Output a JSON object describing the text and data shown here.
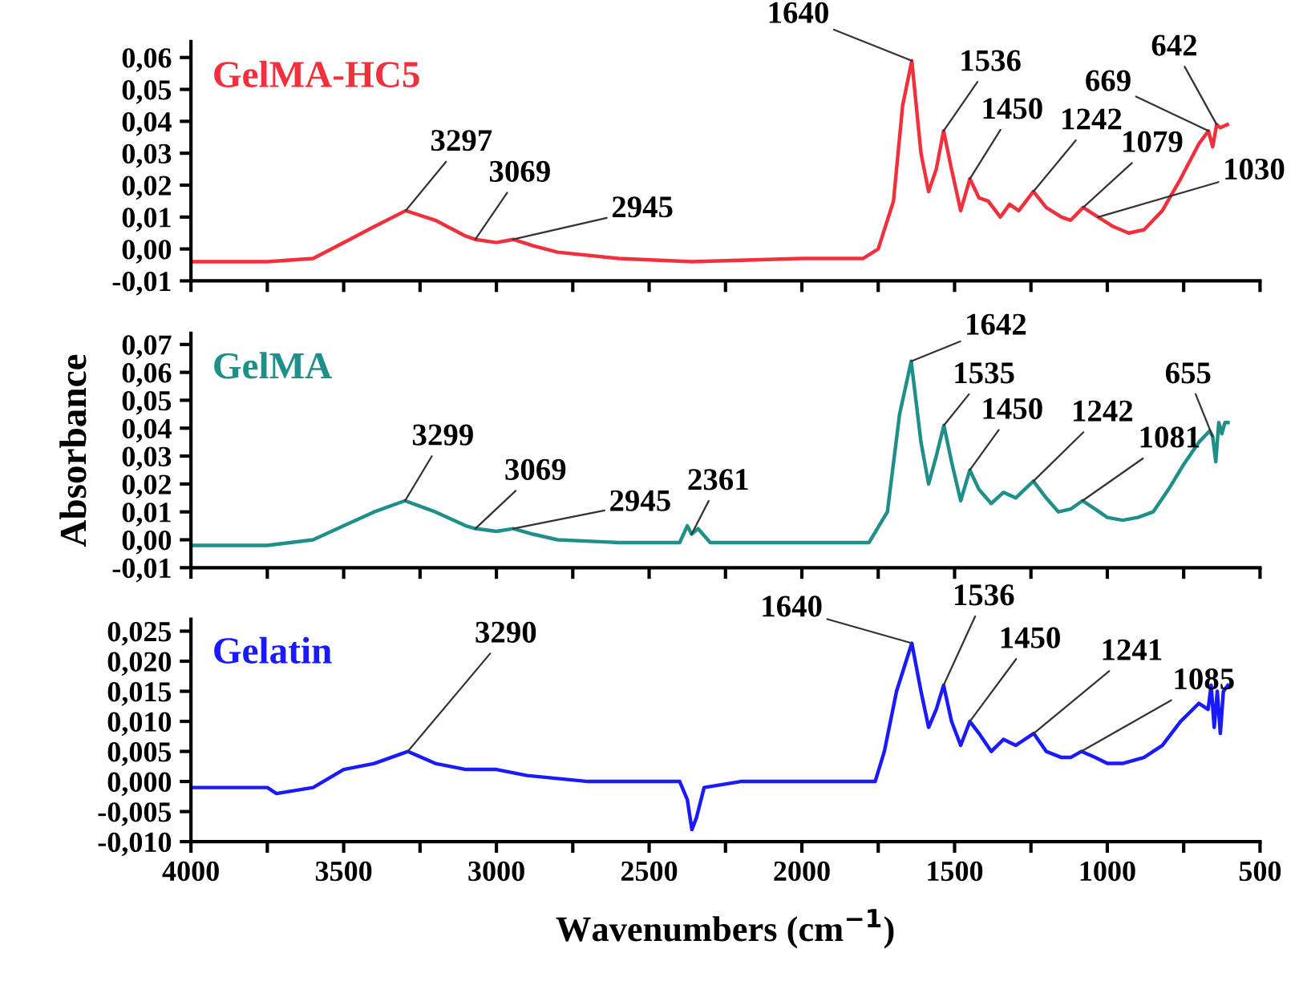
{
  "chart_data": [
    {
      "type": "line",
      "xlim": [
        4000,
        500
      ],
      "ylim": [
        -0.01,
        0.065
      ],
      "tick_labels": "y",
      "xticks": [
        4000,
        {
          "value": 3750,
          "label": null
        },
        3500,
        {
          "value": 3250,
          "label": null
        },
        3000,
        {
          "value": 2750,
          "label": null
        },
        2500,
        {
          "value": 2250,
          "label": null
        },
        2000,
        {
          "value": 1750,
          "label": null
        },
        1500,
        {
          "value": 1250,
          "label": null
        },
        1000,
        {
          "value": 750,
          "label": null
        },
        500
      ],
      "yticks": [
        {
          "value": -0.01,
          "label": "-0,01"
        },
        {
          "value": 0,
          "label": "0,00"
        },
        {
          "value": 0.01,
          "label": "0,01"
        },
        {
          "value": 0.02,
          "label": "0,02"
        },
        {
          "value": 0.03,
          "label": "0,03"
        },
        {
          "value": 0.04,
          "label": "0,04"
        },
        {
          "value": 0.05,
          "label": "0,05"
        },
        {
          "value": 0.06,
          "label": "0,06"
        }
      ],
      "series": [
        {
          "name": "GelMA-HC5",
          "color": "#f0303c",
          "x": [
            4000,
            3750,
            3600,
            3500,
            3400,
            3297,
            3200,
            3100,
            3069,
            3000,
            2945,
            2880,
            2800,
            2600,
            2360,
            2000,
            1800,
            1750,
            1700,
            1670,
            1640,
            1610,
            1585,
            1560,
            1536,
            1510,
            1480,
            1450,
            1420,
            1390,
            1350,
            1320,
            1290,
            1242,
            1200,
            1150,
            1120,
            1079,
            1030,
            980,
            930,
            880,
            820,
            760,
            700,
            669,
            655,
            642,
            630,
            607
          ],
          "values": [
            -0.004,
            -0.004,
            -0.003,
            0.002,
            0.007,
            0.012,
            0.009,
            0.004,
            0.003,
            0.002,
            0.003,
            0.001,
            -0.001,
            -0.003,
            -0.004,
            -0.003,
            -0.003,
            0.0,
            0.015,
            0.045,
            0.059,
            0.03,
            0.018,
            0.025,
            0.037,
            0.025,
            0.012,
            0.022,
            0.016,
            0.015,
            0.01,
            0.014,
            0.012,
            0.018,
            0.013,
            0.01,
            0.009,
            0.013,
            0.01,
            0.007,
            0.005,
            0.006,
            0.012,
            0.022,
            0.033,
            0.037,
            0.032,
            0.039,
            0.038,
            0.039
          ]
        }
      ],
      "annotations": [
        {
          "text": "3297",
          "x": 3297,
          "y": 0.012
        },
        {
          "text": "3069",
          "x": 3069,
          "y": 0.003
        },
        {
          "text": "2945",
          "x": 2945,
          "y": 0.003
        },
        {
          "text": "1640",
          "x": 1640,
          "y": 0.059
        },
        {
          "text": "1536",
          "x": 1536,
          "y": 0.037
        },
        {
          "text": "1450",
          "x": 1450,
          "y": 0.022
        },
        {
          "text": "1242",
          "x": 1242,
          "y": 0.018
        },
        {
          "text": "1079",
          "x": 1079,
          "y": 0.013
        },
        {
          "text": "1030",
          "x": 1030,
          "y": 0.01
        },
        {
          "text": "669",
          "x": 669,
          "y": 0.037
        },
        {
          "text": "642",
          "x": 642,
          "y": 0.039
        }
      ]
    },
    {
      "type": "line",
      "xlim": [
        4000,
        500
      ],
      "ylim": [
        -0.01,
        0.074
      ],
      "tick_labels": "y",
      "ylabel": "Absorbance",
      "xticks": [
        4000,
        {
          "value": 3750,
          "label": null
        },
        3500,
        {
          "value": 3250,
          "label": null
        },
        3000,
        {
          "value": 2750,
          "label": null
        },
        2500,
        {
          "value": 2250,
          "label": null
        },
        2000,
        {
          "value": 1750,
          "label": null
        },
        1500,
        {
          "value": 1250,
          "label": null
        },
        1000,
        {
          "value": 750,
          "label": null
        },
        500
      ],
      "yticks": [
        {
          "value": -0.01,
          "label": "-0,01"
        },
        {
          "value": 0,
          "label": "0,00"
        },
        {
          "value": 0.01,
          "label": "0,01"
        },
        {
          "value": 0.02,
          "label": "0,02"
        },
        {
          "value": 0.03,
          "label": "0,03"
        },
        {
          "value": 0.04,
          "label": "0,04"
        },
        {
          "value": 0.05,
          "label": "0,05"
        },
        {
          "value": 0.06,
          "label": "0,06"
        },
        {
          "value": 0.07,
          "label": "0,07"
        }
      ],
      "series": [
        {
          "name": "GelMA",
          "color": "#1f8f8a",
          "x": [
            4000,
            3750,
            3600,
            3500,
            3400,
            3299,
            3200,
            3100,
            3069,
            3000,
            2945,
            2880,
            2800,
            2600,
            2400,
            2375,
            2361,
            2340,
            2300,
            2000,
            1780,
            1720,
            1680,
            1642,
            1610,
            1585,
            1560,
            1535,
            1510,
            1480,
            1450,
            1420,
            1380,
            1340,
            1300,
            1242,
            1200,
            1160,
            1120,
            1081,
            1040,
            1000,
            950,
            900,
            850,
            800,
            750,
            700,
            665,
            655,
            645,
            635,
            625,
            615,
            605
          ],
          "values": [
            -0.002,
            -0.002,
            0.0,
            0.005,
            0.01,
            0.014,
            0.01,
            0.005,
            0.004,
            0.003,
            0.004,
            0.002,
            0.0,
            -0.001,
            -0.001,
            0.005,
            0.002,
            0.004,
            -0.001,
            -0.001,
            -0.001,
            0.01,
            0.045,
            0.064,
            0.035,
            0.02,
            0.03,
            0.041,
            0.028,
            0.014,
            0.025,
            0.018,
            0.013,
            0.017,
            0.015,
            0.021,
            0.015,
            0.01,
            0.011,
            0.014,
            0.011,
            0.008,
            0.007,
            0.008,
            0.01,
            0.018,
            0.027,
            0.035,
            0.039,
            0.037,
            0.028,
            0.042,
            0.038,
            0.042,
            0.042
          ]
        }
      ],
      "annotations": [
        {
          "text": "3299",
          "x": 3299,
          "y": 0.014
        },
        {
          "text": "3069",
          "x": 3069,
          "y": 0.004
        },
        {
          "text": "2945",
          "x": 2945,
          "y": 0.004
        },
        {
          "text": "2361",
          "x": 2361,
          "y": 0.002
        },
        {
          "text": "1642",
          "x": 1642,
          "y": 0.064
        },
        {
          "text": "1535",
          "x": 1535,
          "y": 0.041
        },
        {
          "text": "1450",
          "x": 1450,
          "y": 0.025
        },
        {
          "text": "1242",
          "x": 1242,
          "y": 0.021
        },
        {
          "text": "1081",
          "x": 1081,
          "y": 0.014
        },
        {
          "text": "655",
          "x": 655,
          "y": 0.037
        }
      ]
    },
    {
      "type": "line",
      "xlim": [
        4000,
        500
      ],
      "ylim": [
        -0.01,
        0.027
      ],
      "xlabel": "Wavenumbers (cm$^{−1}$)",
      "xticks": [
        4000,
        {
          "value": 3750,
          "label": null
        },
        3500,
        {
          "value": 3250,
          "label": null
        },
        3000,
        {
          "value": 2750,
          "label": null
        },
        2500,
        {
          "value": 2250,
          "label": null
        },
        2000,
        {
          "value": 1750,
          "label": null
        },
        1500,
        {
          "value": 1250,
          "label": null
        },
        1000,
        {
          "value": 750,
          "label": null
        },
        500
      ],
      "yticks": [
        {
          "value": -0.01,
          "label": "-0,010"
        },
        {
          "value": -0.005,
          "label": "-0,005"
        },
        {
          "value": 0,
          "label": "0,000"
        },
        {
          "value": 0.005,
          "label": "0,005"
        },
        {
          "value": 0.01,
          "label": "0,010"
        },
        {
          "value": 0.015,
          "label": "0,015"
        },
        {
          "value": 0.02,
          "label": "0,020"
        },
        {
          "value": 0.025,
          "label": "0,025"
        }
      ],
      "series": [
        {
          "name": "Gelatin",
          "color": "#1a1aff",
          "x": [
            4000,
            3750,
            3720,
            3600,
            3500,
            3400,
            3290,
            3200,
            3100,
            3000,
            2900,
            2700,
            2500,
            2400,
            2375,
            2360,
            2345,
            2320,
            2200,
            1800,
            1760,
            1730,
            1690,
            1640,
            1610,
            1585,
            1560,
            1536,
            1510,
            1480,
            1450,
            1420,
            1380,
            1340,
            1300,
            1241,
            1200,
            1150,
            1120,
            1085,
            1040,
            1000,
            950,
            880,
            820,
            760,
            700,
            670,
            660,
            650,
            640,
            630,
            620,
            605
          ],
          "values": [
            -0.001,
            -0.001,
            -0.002,
            -0.001,
            0.002,
            0.003,
            0.005,
            0.003,
            0.002,
            0.002,
            0.001,
            0.0,
            0.0,
            0.0,
            -0.003,
            -0.008,
            -0.006,
            -0.001,
            0.0,
            0.0,
            0.0,
            0.005,
            0.015,
            0.023,
            0.015,
            0.009,
            0.012,
            0.016,
            0.01,
            0.006,
            0.01,
            0.008,
            0.005,
            0.007,
            0.006,
            0.008,
            0.005,
            0.004,
            0.004,
            0.005,
            0.004,
            0.003,
            0.003,
            0.004,
            0.006,
            0.01,
            0.013,
            0.012,
            0.016,
            0.009,
            0.015,
            0.008,
            0.015,
            0.016
          ]
        }
      ],
      "annotations": [
        {
          "text": "3290",
          "x": 3290,
          "y": 0.005
        },
        {
          "text": "1640",
          "x": 1640,
          "y": 0.023
        },
        {
          "text": "1536",
          "x": 1536,
          "y": 0.016
        },
        {
          "text": "1450",
          "x": 1450,
          "y": 0.01
        },
        {
          "text": "1241",
          "x": 1241,
          "y": 0.008
        },
        {
          "text": "1085",
          "x": 1085,
          "y": 0.005
        }
      ]
    }
  ]
}
